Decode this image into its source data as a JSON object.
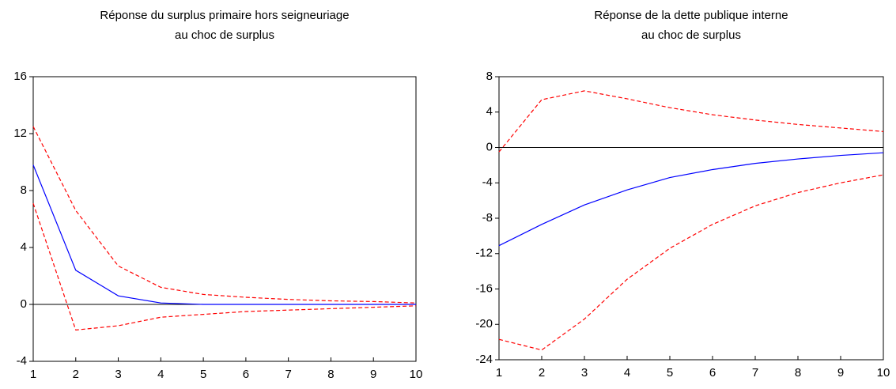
{
  "chart_data": [
    {
      "type": "line",
      "title": [
        "Réponse du surplus primaire hors seigneuriage",
        "au choc de surplus"
      ],
      "x": [
        1,
        2,
        3,
        4,
        5,
        6,
        7,
        8,
        9,
        10
      ],
      "xlim": [
        1,
        10
      ],
      "xticks": [
        1,
        2,
        3,
        4,
        5,
        6,
        7,
        8,
        9,
        10
      ],
      "ylim": [
        -4,
        16
      ],
      "yticks": [
        -4,
        0,
        4,
        8,
        12,
        16
      ],
      "zero_line": true,
      "series": [
        {
          "color": "#0000ff",
          "dashed": false,
          "values": [
            9.8,
            2.4,
            0.6,
            0.1,
            0.0,
            0.0,
            0.0,
            0.0,
            0.0,
            0.0
          ]
        },
        {
          "color": "#ff0000",
          "dashed": true,
          "values": [
            12.5,
            6.6,
            2.7,
            1.2,
            0.7,
            0.5,
            0.35,
            0.25,
            0.2,
            0.1
          ]
        },
        {
          "color": "#ff0000",
          "dashed": true,
          "values": [
            7.1,
            -1.8,
            -1.5,
            -0.9,
            -0.7,
            -0.5,
            -0.4,
            -0.3,
            -0.2,
            -0.1
          ]
        }
      ]
    },
    {
      "type": "line",
      "title": [
        "Réponse de la dette publique interne",
        "au choc de surplus"
      ],
      "x": [
        1,
        2,
        3,
        4,
        5,
        6,
        7,
        8,
        9,
        10
      ],
      "xlim": [
        1,
        10
      ],
      "xticks": [
        1,
        2,
        3,
        4,
        5,
        6,
        7,
        8,
        9,
        10
      ],
      "ylim": [
        -24,
        8
      ],
      "yticks": [
        -24,
        -20,
        -16,
        -12,
        -8,
        -4,
        0,
        4,
        8
      ],
      "zero_line": true,
      "series": [
        {
          "color": "#0000ff",
          "dashed": false,
          "values": [
            -11.1,
            -8.7,
            -6.5,
            -4.8,
            -3.4,
            -2.5,
            -1.8,
            -1.3,
            -0.9,
            -0.6
          ]
        },
        {
          "color": "#ff0000",
          "dashed": true,
          "values": [
            -0.5,
            5.4,
            6.4,
            5.5,
            4.5,
            3.7,
            3.1,
            2.6,
            2.2,
            1.8
          ]
        },
        {
          "color": "#ff0000",
          "dashed": true,
          "values": [
            -21.7,
            -22.9,
            -19.4,
            -14.9,
            -11.4,
            -8.7,
            -6.6,
            -5.1,
            -4.0,
            -3.1
          ]
        }
      ]
    }
  ]
}
